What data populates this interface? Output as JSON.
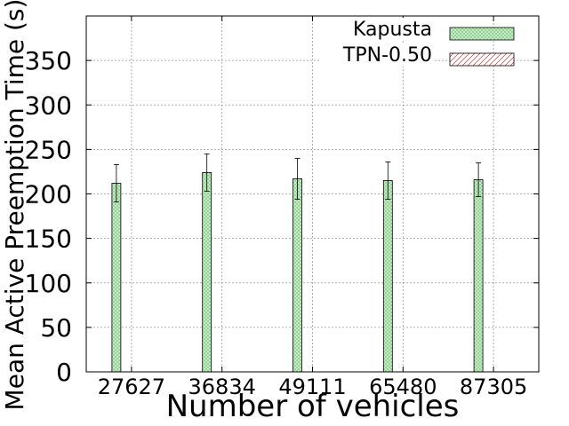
{
  "chart_data": {
    "type": "bar",
    "title": "",
    "xlabel": "Number of vehicles",
    "ylabel": "Mean Active Preemption Time (s)",
    "categories": [
      "27627",
      "36834",
      "49111",
      "65480",
      "87305"
    ],
    "ylim": [
      0,
      400
    ],
    "yticks": [
      0,
      50,
      100,
      150,
      200,
      250,
      300,
      350
    ],
    "grid": true,
    "legend_position": "top-right",
    "series": [
      {
        "name": "Kapusta",
        "values": [
          212,
          224,
          217,
          215,
          216
        ],
        "error": [
          21,
          21,
          23,
          21,
          19
        ],
        "color": "#c8f0c8",
        "pattern": "crosshatch"
      },
      {
        "name": "TPN-0.50",
        "values": [
          0,
          0,
          0,
          0,
          0
        ],
        "color": "#ffffff",
        "pattern": "diagonal-red"
      }
    ]
  }
}
